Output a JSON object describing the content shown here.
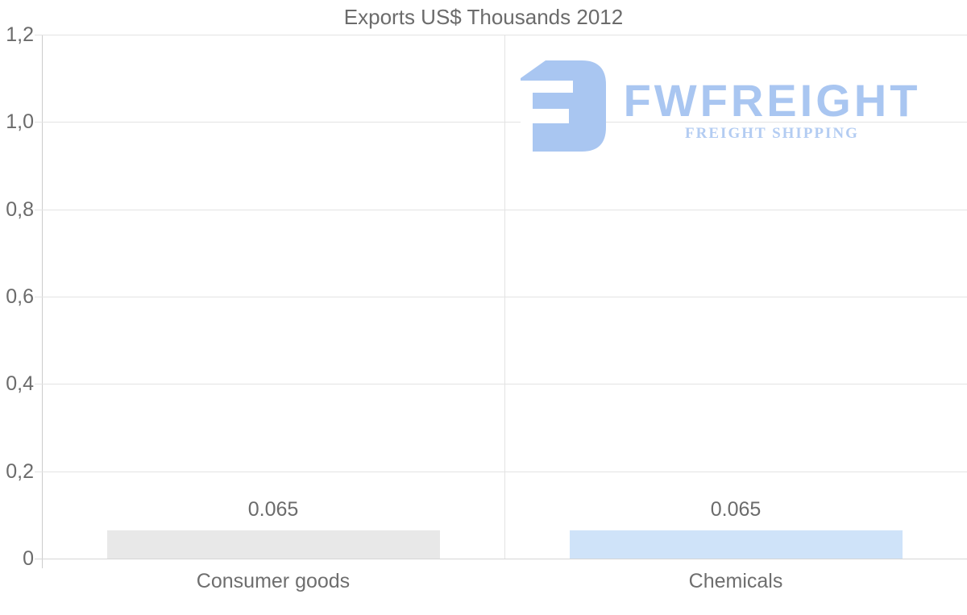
{
  "chart_data": {
    "type": "bar",
    "title": "Exports US$ Thousands 2012",
    "categories": [
      "Consumer goods",
      "Chemicals"
    ],
    "values": [
      0.065,
      0.065
    ],
    "value_labels": [
      "0.065",
      "0.065"
    ],
    "series": [
      {
        "name": "Exports",
        "values": [
          0.065,
          0.065
        ]
      }
    ],
    "bar_colors": [
      "#e8e8e8",
      "#cfe3f9"
    ],
    "xlabel": "",
    "ylabel": "",
    "ylim": [
      0,
      1.2
    ],
    "yticks": [
      {
        "value": 1.2,
        "label": "1,2"
      },
      {
        "value": 1.0,
        "label": "1,0"
      },
      {
        "value": 0.8,
        "label": "0,8"
      },
      {
        "value": 0.6,
        "label": "0,6"
      },
      {
        "value": 0.4,
        "label": "0,4"
      },
      {
        "value": 0.2,
        "label": "0,2"
      },
      {
        "value": 0.0,
        "label": "0"
      }
    ],
    "grid": true,
    "legend": false
  },
  "logo": {
    "brand": "FWFREIGHT",
    "tagline": "FREIGHT SHIPPING",
    "icon": "fwfreight-mark",
    "color_primary": "#a9c6f1",
    "color_tagline": "#b3ccf2"
  },
  "styles": {
    "background": "#ffffff",
    "text_color": "#6b6b6b",
    "gridline_color": "#e3e3e3",
    "baseline_color": "#d6d6d6",
    "axis_line_color": "#cccccc"
  }
}
